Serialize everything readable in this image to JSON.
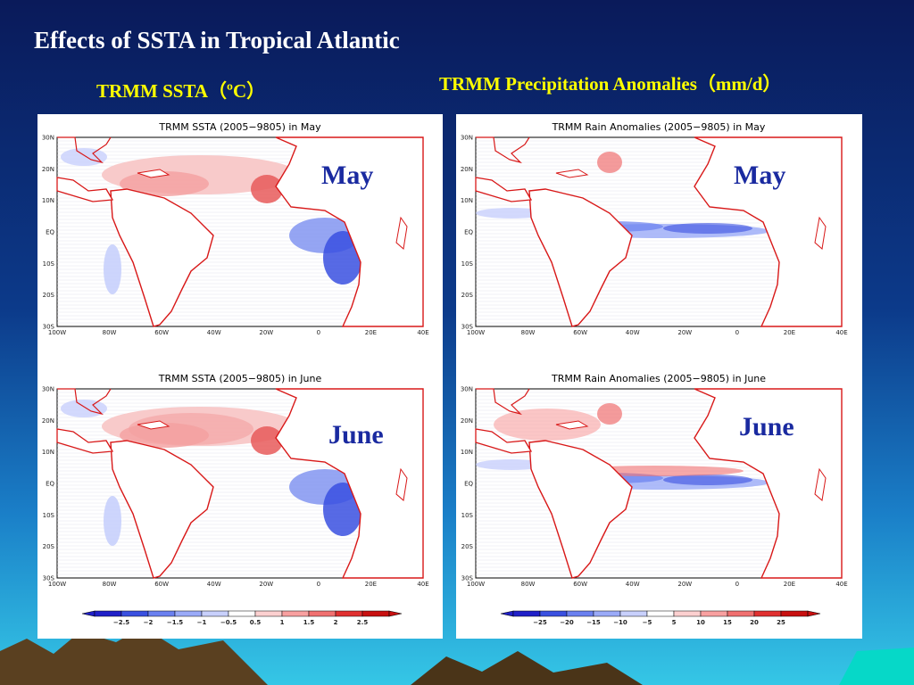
{
  "slide": {
    "title": "Effects of SSTA in Tropical Atlantic",
    "subtitle_left": "TRMM SSTA（ºC）",
    "subtitle_right": "TRMM Precipitation Anomalies（mm/d）"
  },
  "panels": {
    "ssta_may": {
      "title": "TRMM SSTA (2005−9805) in May",
      "label": "May"
    },
    "rain_may": {
      "title": "TRMM Rain Anomalies (2005−9805) in May",
      "label": "May"
    },
    "ssta_june": {
      "title": "TRMM SSTA (2005−9805) in June",
      "label": "June"
    },
    "rain_june": {
      "title": "TRMM Rain Anomalies (2005−9805) in June",
      "label": "June"
    }
  },
  "axes": {
    "lat_labels": [
      "30N",
      "20N",
      "10N",
      "EQ",
      "10S",
      "20S",
      "30S"
    ],
    "lon_labels": [
      "100W",
      "80W",
      "60W",
      "40W",
      "20W",
      "0",
      "20E",
      "40E"
    ]
  },
  "colorbars": {
    "ssta": [
      "−2.5",
      "−2",
      "−1.5",
      "−1",
      "−0.5",
      "0.5",
      "1",
      "1.5",
      "2",
      "2.5"
    ],
    "rain": [
      "−25",
      "−20",
      "−15",
      "−10",
      "−5",
      "5",
      "10",
      "15",
      "20",
      "25"
    ],
    "ssta_colors": [
      "#2020c8",
      "#3a50e0",
      "#6a80f0",
      "#9aaaf8",
      "#c8d0fc",
      "#ffffff",
      "#fcd0d0",
      "#f8a0a0",
      "#f07070",
      "#e03030",
      "#c81010"
    ],
    "rain_colors": [
      "#2020c8",
      "#3a50e0",
      "#6a80f0",
      "#9aaaf8",
      "#c8d0fc",
      "#ffffff",
      "#fcd0d0",
      "#f8a0a0",
      "#f07070",
      "#e03030",
      "#c81010"
    ]
  },
  "colors": {
    "title": "#ffffff",
    "subtitle": "#ffff00",
    "overlay_label": "#1a2aa0",
    "coastline": "#d81818"
  }
}
